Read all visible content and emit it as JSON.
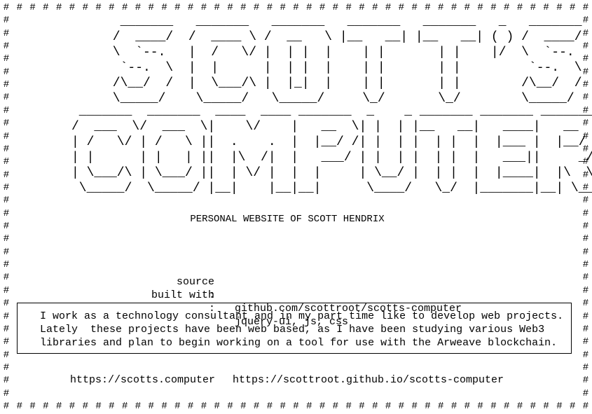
{
  "border": {
    "glyph": "#"
  },
  "banner": {
    "line1": [
      "  _______   _______   _______   _______   _______   _   _______",
      " /  ____/  /  ____ \\ /  __   \\ |__   __| |__   __| ( ) /  ____/",
      " \\  `--.   |  /   \\/ |  | |  |    | |       | |    |/  \\  `--. ",
      "  `--.  \\  |  |      |  | |  |    | |       | |         `--.  \\",
      " /\\__/  /  |  \\___/\\ |  |_|  |    | |       | |        /\\__/  /",
      " \\_____/    \\_____/   \\_____/     \\_/       \\_/        \\_____/ "
    ],
    "line2": [
      " _______  _______  ____  ____ _______  _    _ _______ _______ _______",
      "/  ___  \\/  ___  \\|    \\/    |   __  \\| |  | |__   __|   ____|   __  \\",
      "| /   \\/ | /   \\ ||  .    .  |  |__/ /| |  | |  | |  |  |___ |  |__/ /",
      "| |      | |   | ||  |\\  /|  |   ___/ | |  | |  | |  |   ___||     _/",
      "| \\___/\\ | \\___/ ||  | \\/ |  |  |     | \\__/ |  | |  |  |____|  |\\  \\",
      " \\_____/  \\_____/ |__|    |__|__|      \\____/   \\_/  |_______|__| \\__|"
    ]
  },
  "subtitle": "PERSONAL WEBSITE OF SCOTT HENDRIX",
  "info": [
    {
      "key": "source",
      "sep": ":",
      "value": "github.com/scottroot/scotts-computer"
    },
    {
      "key": "built with",
      "sep": ":",
      "value": "jquery-ui, js, css"
    }
  ],
  "bio": [
    "I work as a technology consultant and in my part time like to develop web projects.",
    "Lately  these projects have been web based, as I have been studying various Web3",
    "libraries and plan to begin working on a tool for use with the Arweave blockchain."
  ],
  "links": {
    "site": "https://scotts.computer",
    "github_pages": "https://scottroot.github.io/scotts-computer"
  }
}
